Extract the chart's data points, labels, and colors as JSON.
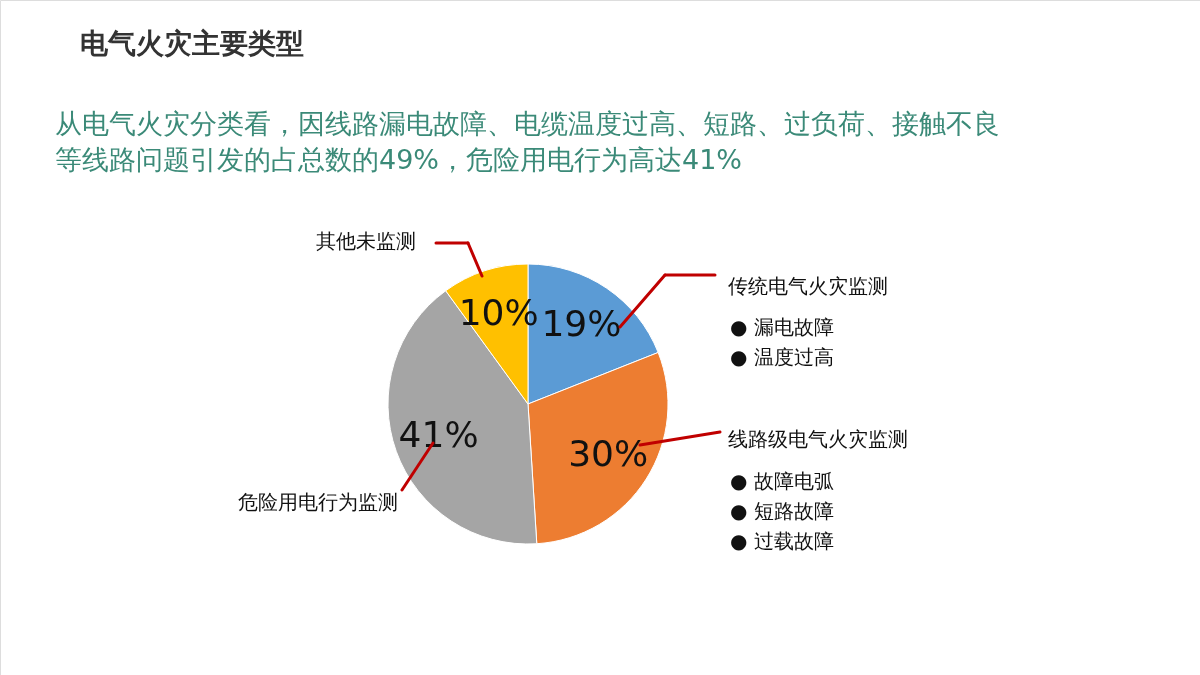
{
  "chart_data": {
    "type": "pie",
    "title": "电气火灾主要类型",
    "subtitle": "从电气火灾分类看，因线路漏电故障、电缆温度过高、短路、过负荷、接触不良等线路问题引发的占总数的49%，危险用电行为高达41%",
    "categories": [
      "传统电气火灾监测",
      "线路级电气火灾监测",
      "危险用电行为监测",
      "其他未监测"
    ],
    "values": [
      19,
      30,
      41,
      10
    ],
    "colors": [
      "#5b9bd5",
      "#ed7d31",
      "#a5a5a5",
      "#ffc000"
    ],
    "value_labels": [
      "19%",
      "30%",
      "41%",
      "10%"
    ],
    "annotations": [
      "●  漏电故障",
      "●  温度过高",
      "●  故障电弧",
      "●  短路故障",
      "●  过载故障"
    ]
  }
}
